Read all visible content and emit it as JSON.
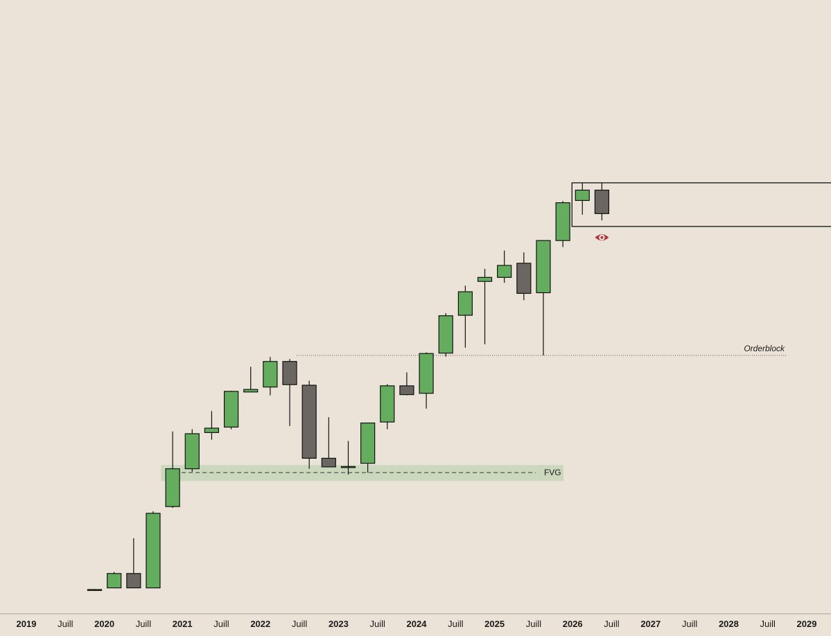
{
  "colors": {
    "background": "#ebe2d8",
    "bull": "#64ad5e",
    "bear": "#6b6661",
    "outline": "#111111",
    "fvg_zone": "#cbd8bd",
    "eye_icon": "#b3383a"
  },
  "chart_data": {
    "type": "candlestick",
    "interval": "quarterly",
    "y_scale": "log",
    "grid": false,
    "title": "",
    "xlabel": "",
    "ylabel": "",
    "x_ticks": [
      {
        "label": "2019",
        "t": 2019.0,
        "bold": true
      },
      {
        "label": "Juill",
        "t": 2019.5,
        "bold": false
      },
      {
        "label": "2020",
        "t": 2020.0,
        "bold": true
      },
      {
        "label": "Juill",
        "t": 2020.5,
        "bold": false
      },
      {
        "label": "2021",
        "t": 2021.0,
        "bold": true
      },
      {
        "label": "Juill",
        "t": 2021.5,
        "bold": false
      },
      {
        "label": "2022",
        "t": 2022.0,
        "bold": true
      },
      {
        "label": "Juill",
        "t": 2022.5,
        "bold": false
      },
      {
        "label": "2023",
        "t": 2023.0,
        "bold": true
      },
      {
        "label": "Juill",
        "t": 2023.5,
        "bold": false
      },
      {
        "label": "2024",
        "t": 2024.0,
        "bold": true
      },
      {
        "label": "Juill",
        "t": 2024.5,
        "bold": false
      },
      {
        "label": "2025",
        "t": 2025.0,
        "bold": true
      },
      {
        "label": "Juill",
        "t": 2025.5,
        "bold": false
      },
      {
        "label": "2026",
        "t": 2026.0,
        "bold": true
      },
      {
        "label": "Juill",
        "t": 2026.5,
        "bold": false
      },
      {
        "label": "2027",
        "t": 2027.0,
        "bold": true
      },
      {
        "label": "Juill",
        "t": 2027.5,
        "bold": false
      },
      {
        "label": "2028",
        "t": 2028.0,
        "bold": true
      },
      {
        "label": "Juill",
        "t": 2028.5,
        "bold": false
      },
      {
        "label": "2029",
        "t": 2029.0,
        "bold": true
      }
    ],
    "candles": [
      {
        "period": "2019-Q4",
        "open": 0.35,
        "high": 0.355,
        "low": 0.35,
        "close": 0.352
      },
      {
        "period": "2020-Q1",
        "open": 0.36,
        "high": 0.45,
        "low": 0.36,
        "close": 0.44
      },
      {
        "period": "2020-Q2",
        "open": 0.44,
        "high": 0.72,
        "low": 0.36,
        "close": 0.36
      },
      {
        "period": "2020-Q3",
        "open": 0.36,
        "high": 1.05,
        "low": 0.36,
        "close": 1.02
      },
      {
        "period": "2020-Q4",
        "open": 1.12,
        "high": 3.2,
        "low": 1.1,
        "close": 1.9
      },
      {
        "period": "2021-Q1",
        "open": 1.9,
        "high": 3.3,
        "low": 1.82,
        "close": 3.1
      },
      {
        "period": "2021-Q2",
        "open": 3.15,
        "high": 4.25,
        "low": 2.85,
        "close": 3.35
      },
      {
        "period": "2021-Q3",
        "open": 3.4,
        "high": 5.65,
        "low": 3.3,
        "close": 5.6
      },
      {
        "period": "2021-Q4",
        "open": 5.55,
        "high": 7.9,
        "low": 5.55,
        "close": 5.75
      },
      {
        "period": "2022-Q1",
        "open": 5.95,
        "high": 9.05,
        "low": 5.3,
        "close": 8.5
      },
      {
        "period": "2022-Q2",
        "open": 8.5,
        "high": 8.8,
        "low": 3.45,
        "close": 6.15
      },
      {
        "period": "2022-Q3",
        "open": 6.1,
        "high": 6.5,
        "low": 1.9,
        "close": 2.2
      },
      {
        "period": "2022-Q4",
        "open": 2.2,
        "high": 3.9,
        "low": 1.95,
        "close": 1.95
      },
      {
        "period": "2023-Q1",
        "open": 1.96,
        "high": 2.8,
        "low": 1.75,
        "close": 1.96
      },
      {
        "period": "2023-Q2",
        "open": 2.05,
        "high": 3.6,
        "low": 1.8,
        "close": 3.6
      },
      {
        "period": "2023-Q3",
        "open": 3.65,
        "high": 6.2,
        "low": 3.3,
        "close": 6.05
      },
      {
        "period": "2023-Q4",
        "open": 6.05,
        "high": 7.3,
        "low": 5.3,
        "close": 5.35
      },
      {
        "period": "2024-Q1",
        "open": 5.45,
        "high": 9.65,
        "low": 4.4,
        "close": 9.5
      },
      {
        "period": "2024-Q2",
        "open": 9.55,
        "high": 16.7,
        "low": 9.1,
        "close": 16.1
      },
      {
        "period": "2024-Q3",
        "open": 16.2,
        "high": 24.5,
        "low": 10.3,
        "close": 22.5
      },
      {
        "period": "2024-Q4",
        "open": 26.0,
        "high": 31.0,
        "low": 10.8,
        "close": 27.5
      },
      {
        "period": "2025-Q1",
        "open": 27.5,
        "high": 40.0,
        "low": 25.5,
        "close": 32.5
      },
      {
        "period": "2025-Q2",
        "open": 33.5,
        "high": 39.0,
        "low": 20.0,
        "close": 22.0
      },
      {
        "period": "2025-Q3",
        "open": 22.2,
        "high": 46.0,
        "low": 9.25,
        "close": 46.0
      },
      {
        "period": "2025-Q4",
        "open": 46.0,
        "high": 80.0,
        "low": 42.0,
        "close": 78.0
      },
      {
        "period": "2026-Q1",
        "open": 80.5,
        "high": 103.0,
        "low": 66.0,
        "close": 93.0
      },
      {
        "period": "2026-Q2",
        "open": 93.0,
        "high": 103.0,
        "low": 61.0,
        "close": 67.0
      }
    ],
    "annotations": {
      "fvg": {
        "label": "FVG",
        "from": "2020-Q4",
        "to": "2025-Q3",
        "low": 1.6,
        "high": 2.0,
        "mid": 1.8
      },
      "orderblock": {
        "label": "Orderblock",
        "from": "2022-Q2",
        "price": 9.25
      },
      "supply_box": {
        "from": "2026-Q1",
        "low": 56.0,
        "high": 103.0
      },
      "eye_marker": {
        "at": "2026-Q2",
        "price": 48.0,
        "icon": "eye-icon"
      }
    }
  }
}
